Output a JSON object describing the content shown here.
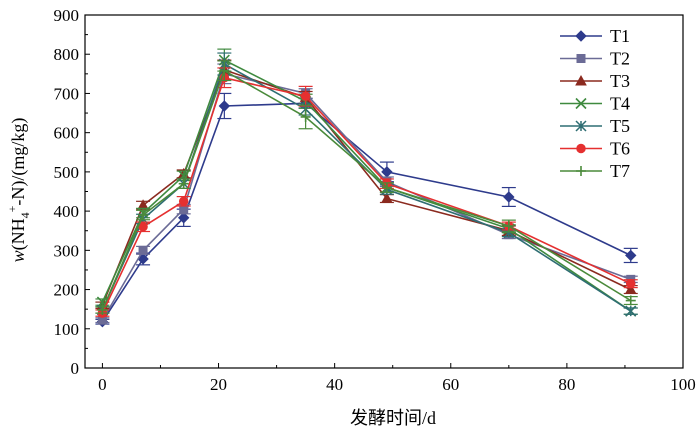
{
  "chart_data": {
    "type": "line",
    "title": "",
    "xlabel": "发酵时间/d",
    "ylabel_parts": {
      "italic": "w",
      "prefix": "(NH",
      "sub": "4",
      "sup": "+",
      "suffix": "-N)/(mg/kg)"
    },
    "xlim": [
      -3,
      100
    ],
    "ylim": [
      0,
      900
    ],
    "xticks": [
      0,
      20,
      40,
      60,
      80,
      100
    ],
    "yticks": [
      0,
      100,
      200,
      300,
      400,
      500,
      600,
      700,
      800,
      900
    ],
    "x": [
      0,
      7,
      14,
      21,
      35,
      49,
      70,
      91
    ],
    "legend_position": "top-right",
    "grid": false,
    "series": [
      {
        "name": "T1",
        "color": "#2e3b8c",
        "marker": "diamond",
        "values": [
          118,
          278,
          383,
          668,
          675,
          500,
          436,
          287
        ],
        "errors": [
          6,
          15,
          22,
          32,
          12,
          25,
          24,
          18
        ]
      },
      {
        "name": "T2",
        "color": "#6b6b96",
        "marker": "square",
        "values": [
          122,
          300,
          405,
          750,
          700,
          475,
          340,
          226
        ],
        "errors": [
          6,
          10,
          12,
          25,
          12,
          12,
          10,
          8
        ]
      },
      {
        "name": "T3",
        "color": "#8b2a1f",
        "marker": "triangle",
        "values": [
          160,
          415,
          495,
          760,
          690,
          432,
          350,
          200
        ],
        "errors": [
          8,
          10,
          10,
          25,
          15,
          10,
          12,
          10
        ]
      },
      {
        "name": "T4",
        "color": "#3f8a3f",
        "marker": "x",
        "values": [
          168,
          395,
          490,
          785,
          680,
          460,
          355,
          145
        ],
        "errors": [
          8,
          12,
          12,
          28,
          18,
          12,
          10,
          8
        ]
      },
      {
        "name": "T5",
        "color": "#2f6e73",
        "marker": "star",
        "values": [
          148,
          380,
          470,
          775,
          660,
          455,
          345,
          145
        ],
        "errors": [
          8,
          12,
          12,
          28,
          15,
          12,
          10,
          8
        ]
      },
      {
        "name": "T6",
        "color": "#e53030",
        "marker": "circle",
        "values": [
          140,
          360,
          425,
          740,
          693,
          470,
          362,
          215
        ],
        "errors": [
          8,
          12,
          12,
          25,
          25,
          12,
          10,
          10
        ]
      },
      {
        "name": "T7",
        "color": "#4a8a3a",
        "marker": "plus",
        "values": [
          148,
          390,
          470,
          758,
          640,
          460,
          362,
          172
        ],
        "errors": [
          8,
          12,
          12,
          25,
          30,
          12,
          15,
          10
        ]
      }
    ]
  }
}
